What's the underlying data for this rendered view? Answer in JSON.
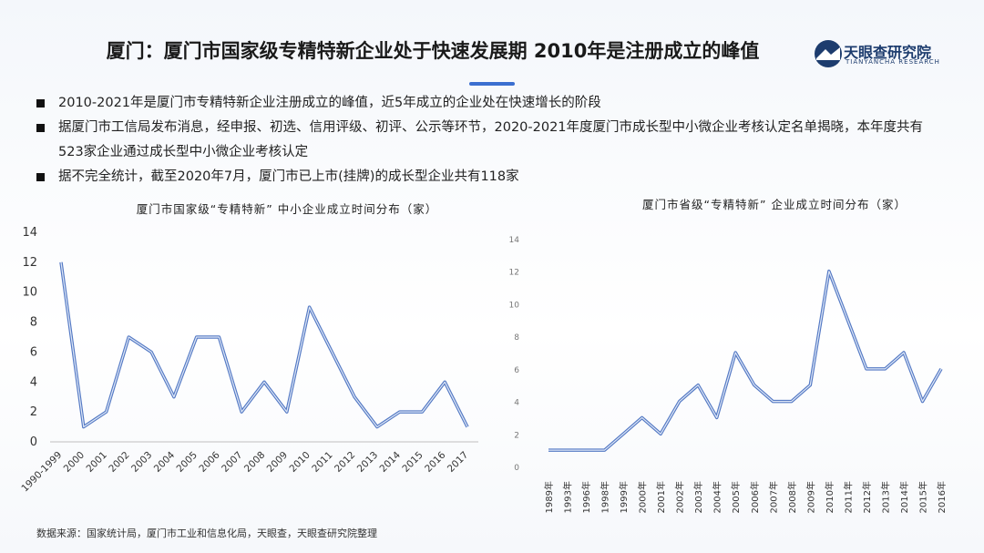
{
  "title": "厦门：厦门市国家级专精特新企业处于快速发展期 2010年是注册成立的峰值",
  "logo": {
    "name": "天眼查研究院",
    "subtitle": "TIANYANCHA RESEARCH"
  },
  "bullets": [
    "2010-2021年是厦门市专精特新企业注册成立的峰值，近5年成立的企业处在快速增长的阶段",
    "据厦门市工信局发布消息，经申报、初选、信用评级、初评、公示等环节，2020-2021年度厦门市成长型中小微企业考核认定名单揭晓，本年度共有523家企业通过成长型中小微企业考核认定",
    "据不完全统计，截至2020年7月，厦门市已上市(挂牌)的成长型企业共有118家"
  ],
  "chart_data": [
    {
      "type": "line",
      "title": "厦门市国家级“专精特新” 中小企业成立时间分布（家）",
      "categories": [
        "1990-1999",
        "2000",
        "2001",
        "2002",
        "2003",
        "2004",
        "2005",
        "2006",
        "2007",
        "2008",
        "2009",
        "2010",
        "2011",
        "2012",
        "2013",
        "2014",
        "2015",
        "2016",
        "2017"
      ],
      "values": [
        12,
        1,
        2,
        7,
        6,
        3,
        7,
        7,
        2,
        4,
        2,
        9,
        6,
        3,
        1,
        2,
        2,
        4,
        1
      ],
      "color": "#5479c4",
      "ylim": [
        0,
        14
      ],
      "yticks": [
        0,
        2,
        4,
        6,
        8,
        10,
        12,
        14
      ]
    },
    {
      "type": "line",
      "title": "厦门市省级“专精特新” 企业成立时间分布（家）",
      "categories": [
        "1989年",
        "1993年",
        "1996年",
        "1998年",
        "1999年",
        "2000年",
        "2001年",
        "2002年",
        "2003年",
        "2004年",
        "2005年",
        "2006年",
        "2007年",
        "2008年",
        "2009年",
        "2010年",
        "2011年",
        "2012年",
        "2013年",
        "2014年",
        "2015年",
        "2016年"
      ],
      "values": [
        1,
        1,
        1,
        1,
        2,
        3,
        2,
        4,
        5,
        3,
        7,
        5,
        4,
        4,
        5,
        12,
        9,
        6,
        6,
        7,
        4,
        6
      ],
      "color": "#5479c4",
      "ylim": [
        0,
        14
      ],
      "yticks": [
        0,
        2,
        4,
        6,
        8,
        10,
        12,
        14
      ]
    }
  ],
  "source": "数据来源：国家统计局，厦门市工业和信息化局，天眼查，天眼查研究院整理"
}
